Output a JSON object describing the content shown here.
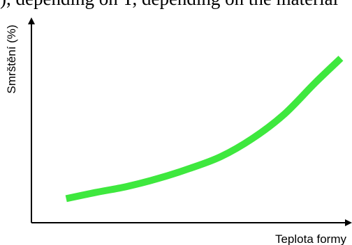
{
  "top_text": "), depending on T, depending on the material",
  "chart_data": {
    "type": "line",
    "xlabel": "Teplota formy",
    "ylabel": "Smrštění (%)",
    "x_ticks": "none",
    "y_ticks": "none",
    "grid": false,
    "xlim": [
      0,
      10
    ],
    "ylim": [
      0,
      10
    ],
    "series": [
      {
        "x": [
          1.1,
          2.0,
          3.0,
          4.0,
          5.0,
          6.0,
          7.0,
          8.0,
          9.0,
          9.8
        ],
        "values": [
          1.2,
          1.5,
          1.8,
          2.2,
          2.7,
          3.3,
          4.2,
          5.4,
          7.0,
          8.2
        ]
      }
    ]
  },
  "colors": {
    "curve": "#3ee83e",
    "axis": "#000000"
  }
}
